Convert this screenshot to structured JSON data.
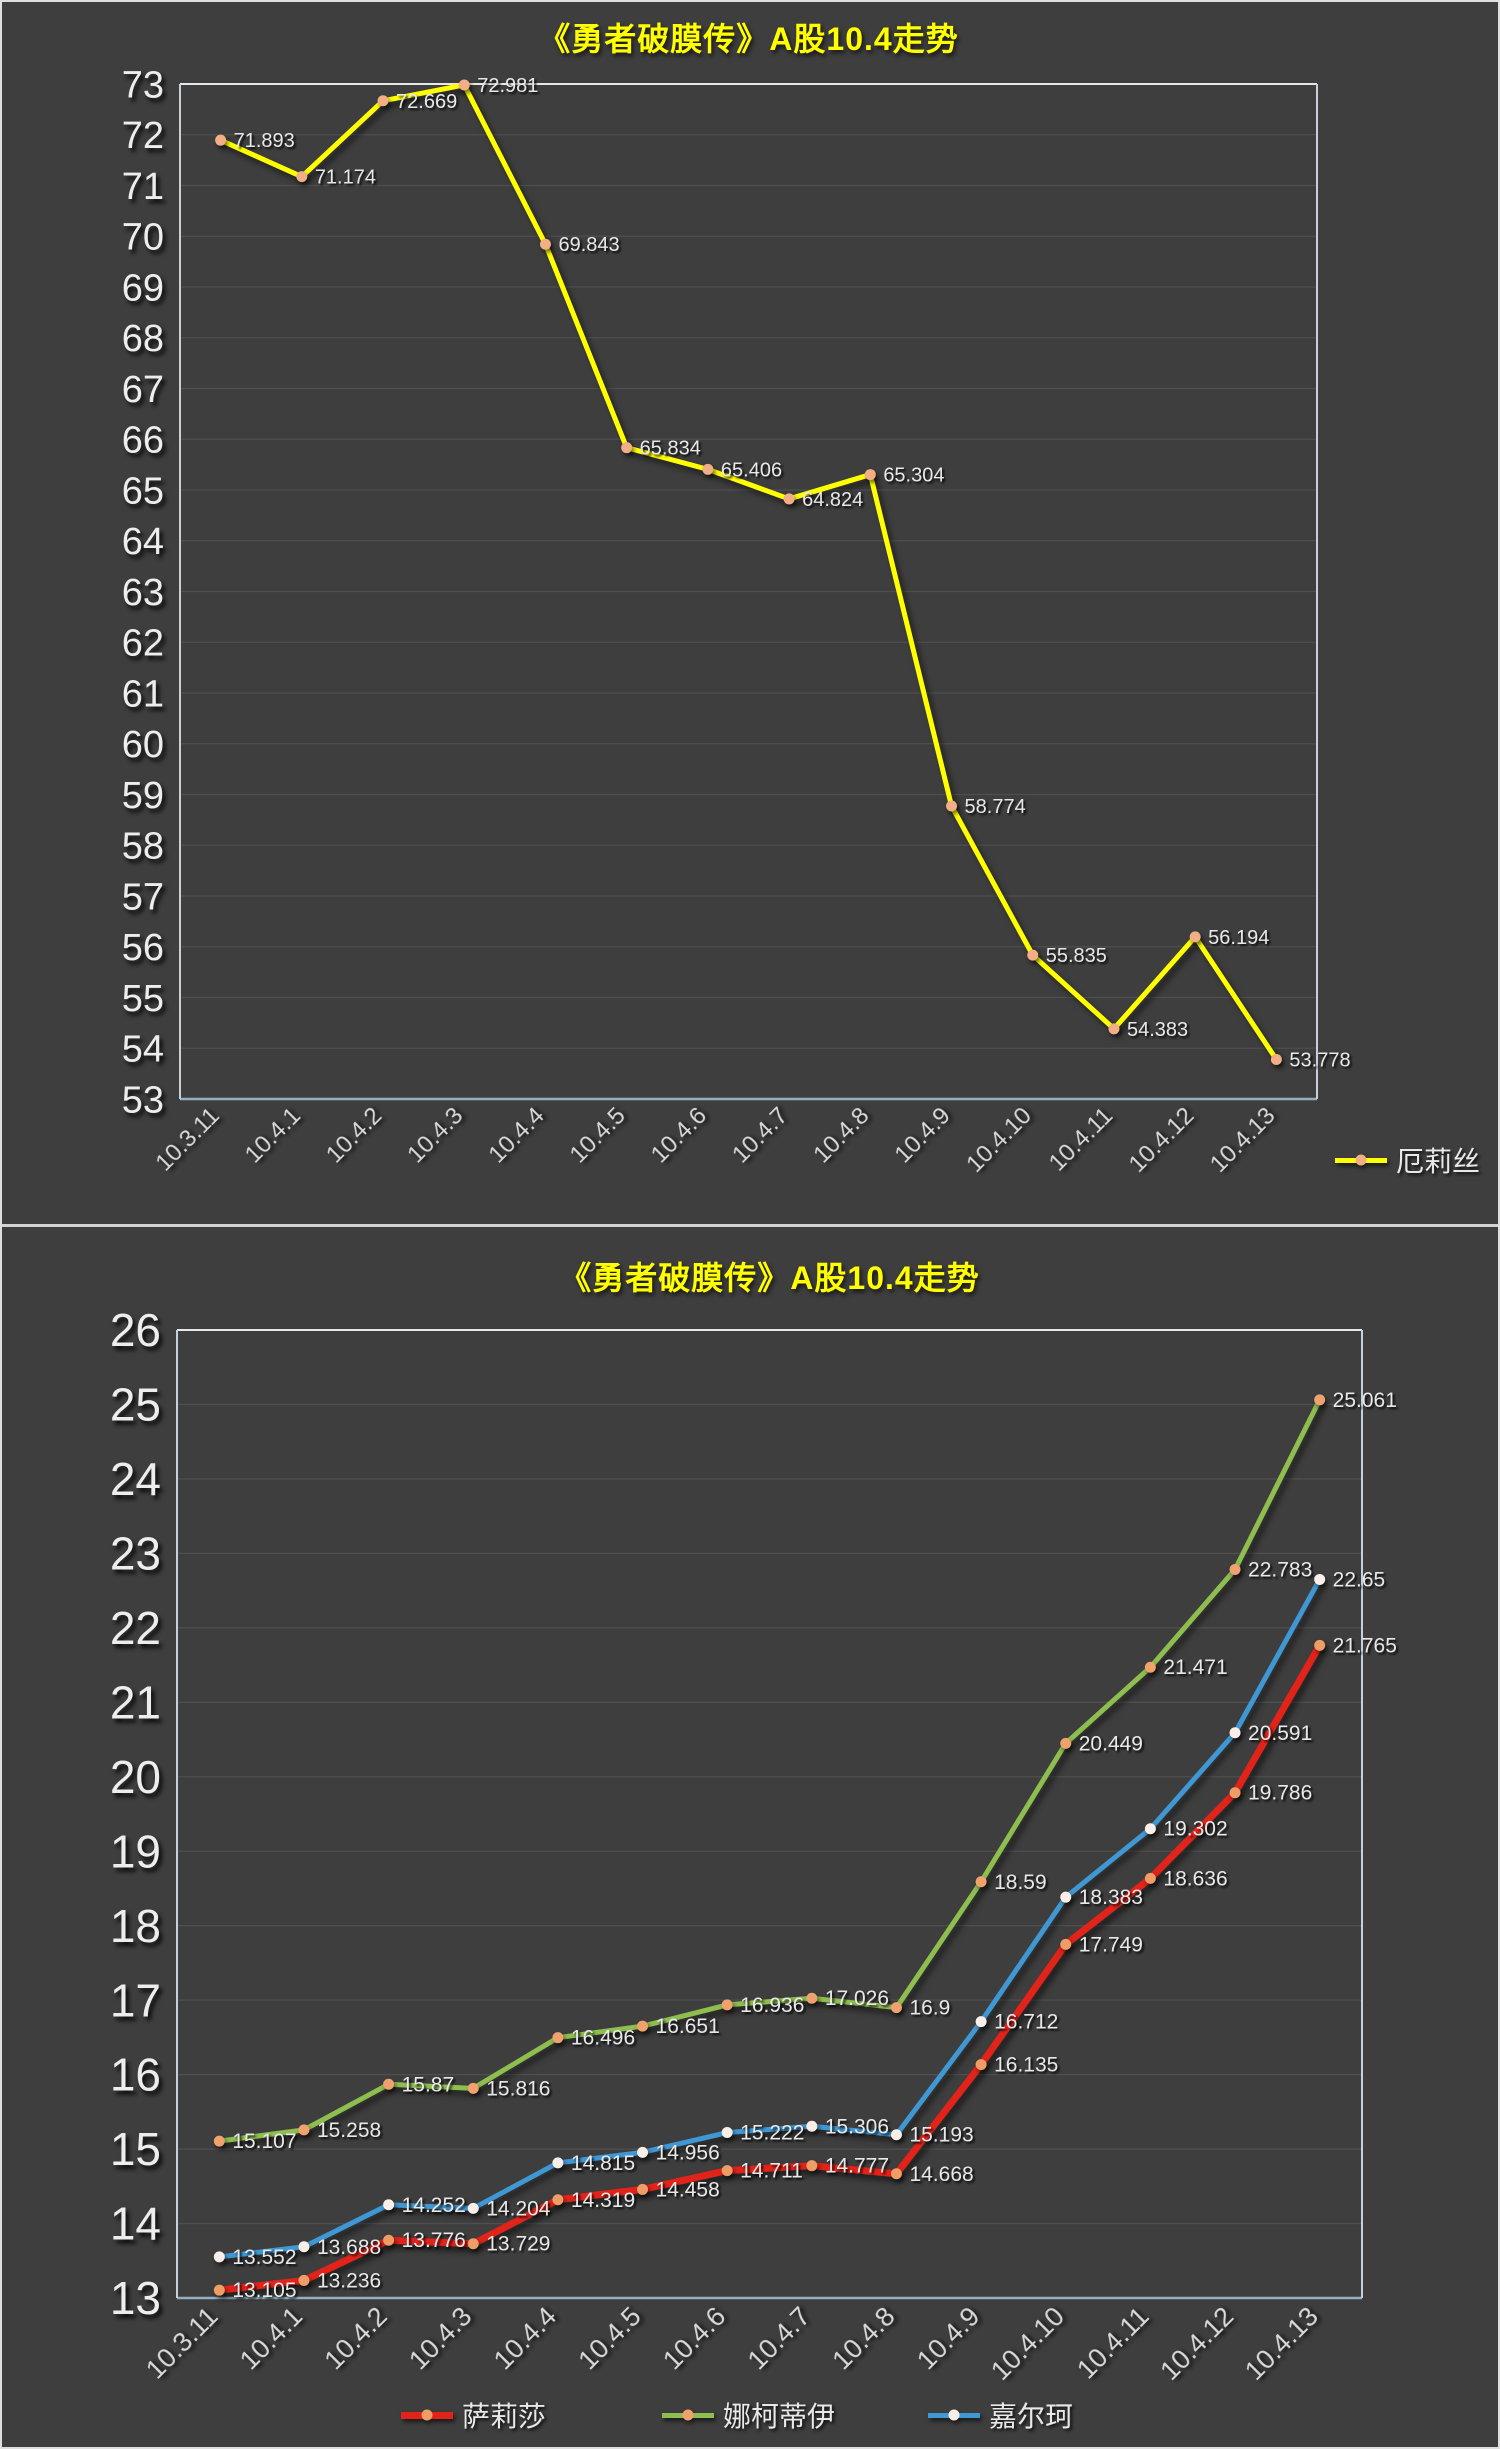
{
  "page": {
    "background": "#3E3E3E",
    "frame_color": "#DFDFDF",
    "title_color": "#FFFF00",
    "axis_text_color": "#EDEDED",
    "x_axis_text_color": "#D8D8D8",
    "data_label_color": "#E8E8E8",
    "grid_color": "#4F4F4F",
    "plot_border_color": "#C6D0D8",
    "plot_bottom_border_color": "#93AFC2"
  },
  "chart_data": [
    {
      "type": "line",
      "title": "《勇者破膜传》A股10.4走势",
      "categories": [
        "10.3.11",
        "10.4.1",
        "10.4.2",
        "10.4.3",
        "10.4.4",
        "10.4.5",
        "10.4.6",
        "10.4.7",
        "10.4.8",
        "10.4.9",
        "10.4.10",
        "10.4.11",
        "10.4.12",
        "10.4.13"
      ],
      "ylim": [
        53,
        73
      ],
      "y_step": 1,
      "grid": true,
      "legend_position": "right",
      "series": [
        {
          "name": "厄莉丝",
          "color": "#FFFF00",
          "marker_color": "#F2AE85",
          "line_width": 5,
          "values": [
            71.893,
            71.174,
            72.669,
            72.981,
            69.843,
            65.834,
            65.406,
            64.824,
            65.304,
            58.774,
            55.835,
            54.383,
            56.194,
            53.778
          ]
        }
      ]
    },
    {
      "type": "line",
      "title": "《勇者破膜传》A股10.4走势",
      "categories": [
        "10.3.11",
        "10.4.1",
        "10.4.2",
        "10.4.3",
        "10.4.4",
        "10.4.5",
        "10.4.6",
        "10.4.7",
        "10.4.8",
        "10.4.9",
        "10.4.10",
        "10.4.11",
        "10.4.12",
        "10.4.13"
      ],
      "ylim": [
        13,
        26
      ],
      "y_step": 1,
      "grid": true,
      "legend_position": "bottom",
      "series": [
        {
          "name": "萨莉莎",
          "color": "#E2231A",
          "marker_color": "#EF9D66",
          "line_width": 7,
          "values": [
            13.105,
            13.236,
            13.776,
            13.729,
            14.319,
            14.458,
            14.711,
            14.777,
            14.668,
            16.135,
            17.749,
            18.636,
            19.786,
            21.765
          ]
        },
        {
          "name": "娜柯蒂伊",
          "color": "#8DBE4E",
          "marker_color": "#EFA26E",
          "line_width": 5,
          "values": [
            15.107,
            15.258,
            15.87,
            15.816,
            16.496,
            16.651,
            16.936,
            17.026,
            16.9,
            18.59,
            20.449,
            21.471,
            22.783,
            25.061
          ]
        },
        {
          "name": "嘉尔珂",
          "color": "#3F97D3",
          "marker_color": "#F9EFE8",
          "line_width": 5,
          "values": [
            13.552,
            13.688,
            14.252,
            14.204,
            14.815,
            14.956,
            15.222,
            15.306,
            15.193,
            16.712,
            18.383,
            19.302,
            20.591,
            22.65
          ]
        }
      ]
    }
  ]
}
